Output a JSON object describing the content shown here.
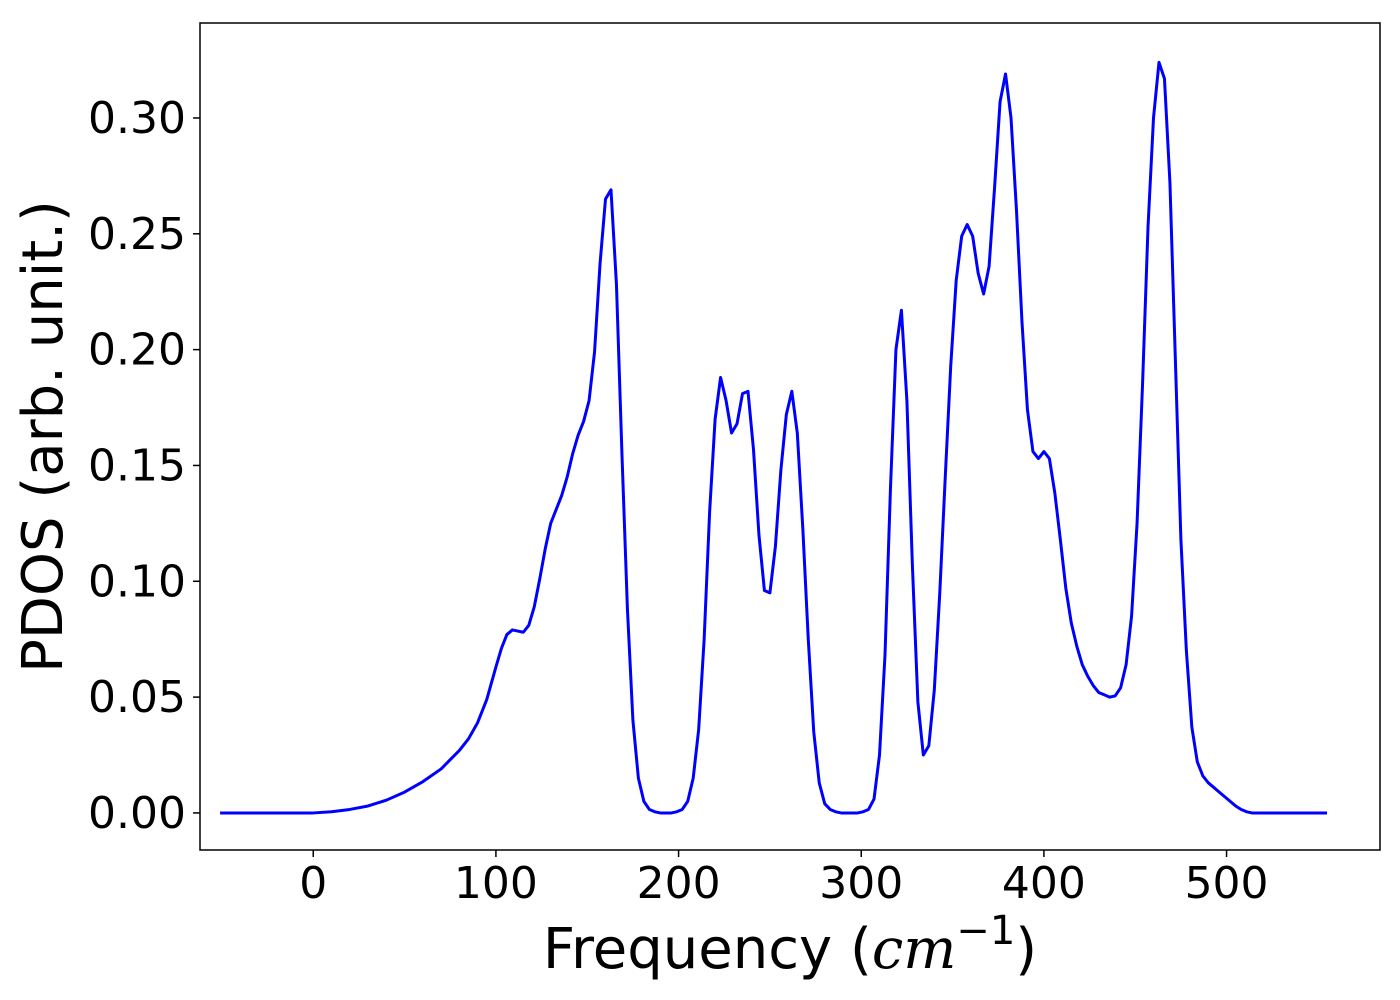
{
  "chart_data": {
    "type": "line",
    "title": "",
    "xlabel": {
      "prefix": "Frequency (",
      "math_base": "cm",
      "math_exp": "−1",
      "suffix": ")"
    },
    "ylabel": "PDOS (arb. unit.)",
    "xlim": [
      -62,
      584
    ],
    "ylim": [
      -0.016,
      0.341
    ],
    "x_ticks": [
      {
        "value": 0,
        "label": "0"
      },
      {
        "value": 100,
        "label": "100"
      },
      {
        "value": 200,
        "label": "200"
      },
      {
        "value": 300,
        "label": "300"
      },
      {
        "value": 400,
        "label": "400"
      },
      {
        "value": 500,
        "label": "500"
      }
    ],
    "y_ticks": [
      {
        "value": 0.0,
        "label": "0.00"
      },
      {
        "value": 0.05,
        "label": "0.05"
      },
      {
        "value": 0.1,
        "label": "0.10"
      },
      {
        "value": 0.15,
        "label": "0.15"
      },
      {
        "value": 0.2,
        "label": "0.20"
      },
      {
        "value": 0.25,
        "label": "0.25"
      },
      {
        "value": 0.3,
        "label": "0.30"
      }
    ],
    "grid": false,
    "legend": "none",
    "series": [
      {
        "color": "#0000ff",
        "x": [
          -51,
          -40,
          -30,
          -20,
          -10,
          0,
          10,
          20,
          30,
          40,
          50,
          60,
          70,
          80,
          85,
          90,
          95,
          100,
          103,
          106,
          109,
          112,
          115,
          118,
          121,
          124,
          127,
          130,
          133,
          136,
          139,
          142,
          145,
          148,
          151,
          154,
          157,
          160,
          163,
          166,
          169,
          172,
          175,
          178,
          181,
          184,
          187,
          190,
          193,
          196,
          199,
          202,
          205,
          208,
          211,
          214,
          217,
          220,
          223,
          226,
          229,
          232,
          235,
          238,
          241,
          244,
          247,
          250,
          253,
          256,
          259,
          262,
          265,
          268,
          271,
          274,
          277,
          280,
          283,
          286,
          289,
          292,
          295,
          298,
          301,
          304,
          307,
          310,
          313,
          316,
          319,
          322,
          325,
          328,
          331,
          334,
          337,
          340,
          343,
          346,
          349,
          352,
          355,
          358,
          361,
          364,
          367,
          370,
          373,
          376,
          379,
          382,
          385,
          388,
          391,
          394,
          397,
          400,
          403,
          406,
          409,
          412,
          415,
          418,
          421,
          424,
          427,
          430,
          433,
          436,
          439,
          442,
          445,
          448,
          451,
          454,
          457,
          460,
          463,
          466,
          469,
          472,
          475,
          478,
          481,
          484,
          487,
          490,
          493,
          496,
          499,
          502,
          505,
          508,
          511,
          514,
          517,
          520,
          530,
          540,
          550,
          555
        ],
        "y": [
          0.0,
          0.0,
          0.0,
          0.0,
          0.0,
          0.0,
          0.0005,
          0.0015,
          0.003,
          0.0055,
          0.009,
          0.0135,
          0.019,
          0.027,
          0.032,
          0.039,
          0.049,
          0.063,
          0.071,
          0.077,
          0.079,
          0.0785,
          0.078,
          0.081,
          0.089,
          0.101,
          0.114,
          0.125,
          0.131,
          0.137,
          0.145,
          0.155,
          0.163,
          0.169,
          0.178,
          0.199,
          0.237,
          0.265,
          0.269,
          0.228,
          0.155,
          0.088,
          0.04,
          0.015,
          0.005,
          0.0015,
          0.0005,
          0.0,
          0.0,
          0.0,
          0.0005,
          0.0015,
          0.005,
          0.015,
          0.036,
          0.075,
          0.13,
          0.17,
          0.188,
          0.178,
          0.164,
          0.168,
          0.181,
          0.182,
          0.157,
          0.12,
          0.096,
          0.095,
          0.115,
          0.148,
          0.172,
          0.182,
          0.164,
          0.123,
          0.075,
          0.035,
          0.013,
          0.004,
          0.0015,
          0.0005,
          0.0,
          0.0,
          0.0,
          0.0,
          0.0005,
          0.0015,
          0.006,
          0.025,
          0.068,
          0.14,
          0.2,
          0.217,
          0.178,
          0.107,
          0.048,
          0.025,
          0.029,
          0.053,
          0.095,
          0.145,
          0.193,
          0.23,
          0.249,
          0.254,
          0.249,
          0.233,
          0.224,
          0.236,
          0.27,
          0.307,
          0.319,
          0.3,
          0.26,
          0.212,
          0.174,
          0.156,
          0.153,
          0.156,
          0.153,
          0.138,
          0.118,
          0.097,
          0.082,
          0.072,
          0.064,
          0.059,
          0.055,
          0.052,
          0.051,
          0.05,
          0.0505,
          0.054,
          0.064,
          0.085,
          0.125,
          0.185,
          0.253,
          0.3,
          0.324,
          0.317,
          0.272,
          0.195,
          0.118,
          0.07,
          0.037,
          0.022,
          0.016,
          0.013,
          0.011,
          0.009,
          0.007,
          0.005,
          0.003,
          0.0015,
          0.0005,
          0.0,
          0.0,
          0.0,
          0.0,
          0.0,
          0.0,
          0.0
        ]
      }
    ]
  }
}
